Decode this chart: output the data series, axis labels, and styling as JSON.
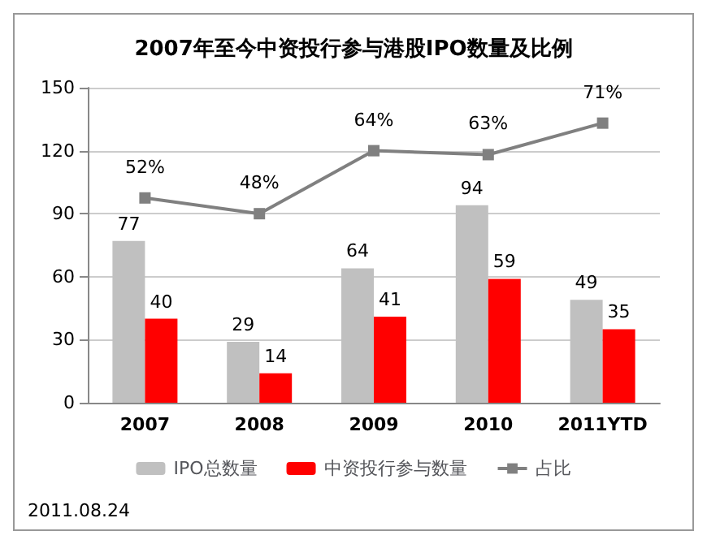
{
  "chart_data": {
    "type": "bar",
    "title": "2007年至今中资投行参与港股IPO数量及比例",
    "categories": [
      "2007",
      "2008",
      "2009",
      "2010",
      "2011YTD"
    ],
    "series": [
      {
        "name": "IPO总数量",
        "color": "#c0c0c0",
        "values": [
          77,
          29,
          64,
          94,
          49
        ]
      },
      {
        "name": "中资投行参与数量",
        "color": "#ff0000",
        "values": [
          40,
          14,
          41,
          59,
          35
        ]
      },
      {
        "name": "占比",
        "type": "line",
        "axis": "y2",
        "color": "#808080",
        "marker": "square",
        "values": [
          52,
          48,
          64,
          63,
          71
        ],
        "value_labels": [
          "52%",
          "48%",
          "64%",
          "63%",
          "71%"
        ]
      }
    ],
    "ylim": [
      0,
      150
    ],
    "yticks": [
      0,
      30,
      60,
      90,
      120,
      150
    ],
    "y2lim": [
      0,
      80
    ],
    "grid": "y",
    "legend": "bottom",
    "data_labels": true,
    "annotations": [
      "2011.08.24"
    ]
  }
}
